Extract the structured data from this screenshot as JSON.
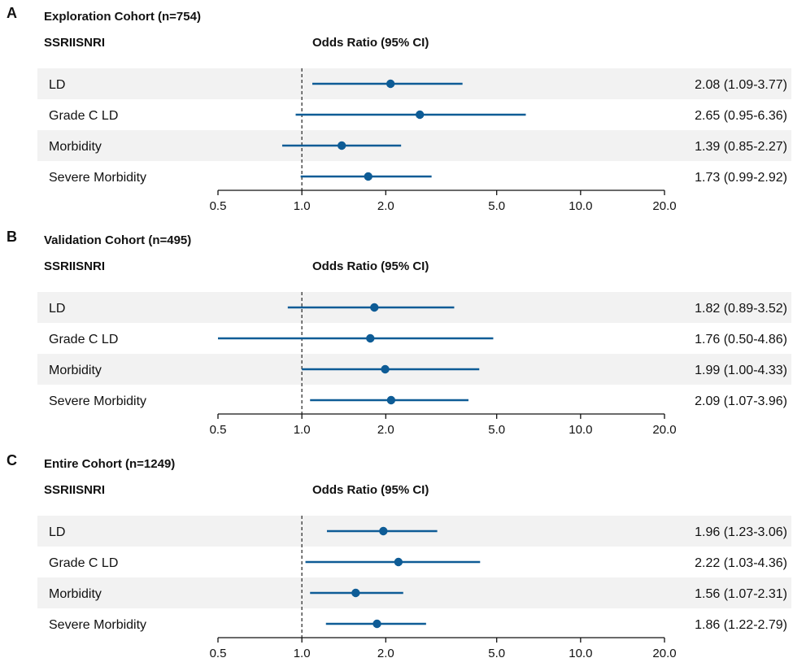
{
  "chart_data": [
    {
      "type": "forest",
      "panel": "A",
      "title": "Exploration Cohort (n=754)",
      "group_label": "SSRIISNRI",
      "metric_label": "Odds Ratio (95% CI)",
      "x_scale": "log",
      "xlim": [
        0.5,
        20.0
      ],
      "ticks": [
        0.5,
        1.0,
        2.0,
        5.0,
        10.0,
        20.0
      ],
      "tick_labels": [
        "0.5",
        "1.0",
        "2.0",
        "5.0",
        "10.0",
        "20.0"
      ],
      "reference_line": 1.0,
      "rows": [
        {
          "label": "LD",
          "or": 2.08,
          "lo": 1.09,
          "hi": 3.77,
          "text": "2.08 (1.09-3.77)"
        },
        {
          "label": "Grade C LD",
          "or": 2.65,
          "lo": 0.95,
          "hi": 6.36,
          "text": "2.65 (0.95-6.36)"
        },
        {
          "label": "Morbidity",
          "or": 1.39,
          "lo": 0.85,
          "hi": 2.27,
          "text": "1.39 (0.85-2.27)"
        },
        {
          "label": "Severe Morbidity",
          "or": 1.73,
          "lo": 0.99,
          "hi": 2.92,
          "text": "1.73 (0.99-2.92)"
        }
      ]
    },
    {
      "type": "forest",
      "panel": "B",
      "title": "Validation Cohort (n=495)",
      "group_label": "SSRIISNRI",
      "metric_label": "Odds Ratio (95% CI)",
      "x_scale": "log",
      "xlim": [
        0.5,
        20.0
      ],
      "ticks": [
        0.5,
        1.0,
        2.0,
        5.0,
        10.0,
        20.0
      ],
      "tick_labels": [
        "0.5",
        "1.0",
        "2.0",
        "5.0",
        "10.0",
        "20.0"
      ],
      "reference_line": 1.0,
      "rows": [
        {
          "label": "LD",
          "or": 1.82,
          "lo": 0.89,
          "hi": 3.52,
          "text": "1.82 (0.89-3.52)"
        },
        {
          "label": "Grade C LD",
          "or": 1.76,
          "lo": 0.5,
          "hi": 4.86,
          "text": "1.76 (0.50-4.86)"
        },
        {
          "label": "Morbidity",
          "or": 1.99,
          "lo": 1.0,
          "hi": 4.33,
          "text": "1.99 (1.00-4.33)"
        },
        {
          "label": "Severe Morbidity",
          "or": 2.09,
          "lo": 1.07,
          "hi": 3.96,
          "text": "2.09 (1.07-3.96)"
        }
      ]
    },
    {
      "type": "forest",
      "panel": "C",
      "title": "Entire Cohort (n=1249)",
      "group_label": "SSRIISNRI",
      "metric_label": "Odds Ratio (95% CI)",
      "x_scale": "log",
      "xlim": [
        0.5,
        20.0
      ],
      "ticks": [
        0.5,
        1.0,
        2.0,
        5.0,
        10.0,
        20.0
      ],
      "tick_labels": [
        "0.5",
        "1.0",
        "2.0",
        "5.0",
        "10.0",
        "20.0"
      ],
      "reference_line": 1.0,
      "rows": [
        {
          "label": "LD",
          "or": 1.96,
          "lo": 1.23,
          "hi": 3.06,
          "text": "1.96 (1.23-3.06)"
        },
        {
          "label": "Grade C LD",
          "or": 2.22,
          "lo": 1.03,
          "hi": 4.36,
          "text": "2.22 (1.03-4.36)"
        },
        {
          "label": "Morbidity",
          "or": 1.56,
          "lo": 1.07,
          "hi": 2.31,
          "text": "1.56 (1.07-2.31)"
        },
        {
          "label": "Severe Morbidity",
          "or": 1.86,
          "lo": 1.22,
          "hi": 2.79,
          "text": "1.86 (1.22-2.79)"
        }
      ]
    }
  ],
  "colors": {
    "marker": "#0e5c96",
    "stripe": "#f2f2f2",
    "axis": "#111111",
    "reference_line": "#333333"
  }
}
